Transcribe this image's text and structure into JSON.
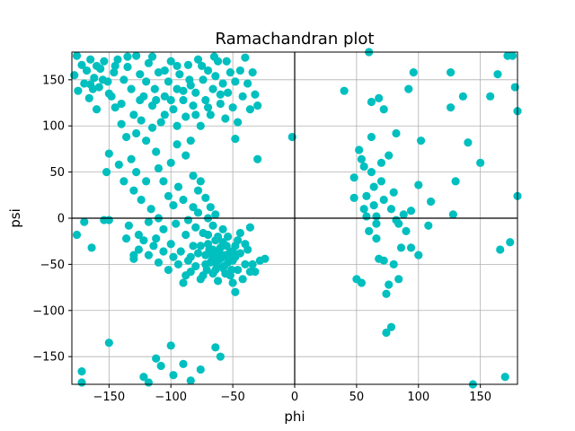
{
  "chart_data": {
    "type": "scatter",
    "title": "Ramachandran plot",
    "xlabel": "phi",
    "ylabel": "psi",
    "xlim": [
      -180,
      180
    ],
    "ylim": [
      -180,
      180
    ],
    "xticks": [
      -150,
      -100,
      -50,
      0,
      50,
      100,
      150
    ],
    "yticks": [
      -150,
      -100,
      -50,
      0,
      50,
      100,
      150
    ],
    "grid": true,
    "reference_lines": {
      "x": 0,
      "y": 0
    },
    "marker_color": "#00bfbf",
    "points": [
      [
        -176,
        176
      ],
      [
        -172,
        166
      ],
      [
        -168,
        160
      ],
      [
        -165,
        172
      ],
      [
        -162,
        152
      ],
      [
        -158,
        142
      ],
      [
        -178,
        155
      ],
      [
        -175,
        138
      ],
      [
        -170,
        146
      ],
      [
        -166,
        130
      ],
      [
        -163,
        140
      ],
      [
        -160,
        118
      ],
      [
        -157,
        162
      ],
      [
        -154,
        170
      ],
      [
        -151,
        148
      ],
      [
        -148,
        132
      ],
      [
        -146,
        158
      ],
      [
        -143,
        172
      ],
      [
        -140,
        124
      ],
      [
        -138,
        150
      ],
      [
        -135,
        164
      ],
      [
        -132,
        140
      ],
      [
        -130,
        112
      ],
      [
        -128,
        176
      ],
      [
        -125,
        156
      ],
      [
        -122,
        132
      ],
      [
        -120,
        148
      ],
      [
        -118,
        168
      ],
      [
        -115,
        122
      ],
      [
        -113,
        140
      ],
      [
        -110,
        158
      ],
      [
        -108,
        104
      ],
      [
        -105,
        132
      ],
      [
        -102,
        148
      ],
      [
        -100,
        170
      ],
      [
        -98,
        118
      ],
      [
        -95,
        140
      ],
      [
        -93,
        156
      ],
      [
        -90,
        128
      ],
      [
        -88,
        110
      ],
      [
        -86,
        166
      ],
      [
        -84,
        144
      ],
      [
        -82,
        122
      ],
      [
        -80,
        136
      ],
      [
        -78,
        172
      ],
      [
        -76,
        100
      ],
      [
        -74,
        150
      ],
      [
        -72,
        128
      ],
      [
        -70,
        160
      ],
      [
        -68,
        112
      ],
      [
        -66,
        140
      ],
      [
        -64,
        154
      ],
      [
        -62,
        170
      ],
      [
        -60,
        124
      ],
      [
        -58,
        146
      ],
      [
        -56,
        108
      ],
      [
        -54,
        136
      ],
      [
        -52,
        158
      ],
      [
        -50,
        120
      ],
      [
        -48,
        148
      ],
      [
        -46,
        104
      ],
      [
        -44,
        160
      ],
      [
        -42,
        132
      ],
      [
        -40,
        174
      ],
      [
        -38,
        146
      ],
      [
        -36,
        118
      ],
      [
        -34,
        158
      ],
      [
        -32,
        134
      ],
      [
        -30,
        122
      ],
      [
        -128,
        92
      ],
      [
        -124,
        106
      ],
      [
        -120,
        84
      ],
      [
        -140,
        102
      ],
      [
        -145,
        120
      ],
      [
        -150,
        135
      ],
      [
        -155,
        150
      ],
      [
        -160,
        165
      ],
      [
        -165,
        145
      ],
      [
        -145,
        165
      ],
      [
        -135,
        175
      ],
      [
        -115,
        175
      ],
      [
        -105,
        160
      ],
      [
        -95,
        165
      ],
      [
        -75,
        165
      ],
      [
        -65,
        175
      ],
      [
        -55,
        170
      ],
      [
        -85,
        150
      ],
      [
        -105,
        112
      ],
      [
        -95,
        100
      ],
      [
        -115,
        98
      ],
      [
        -125,
        128
      ],
      [
        -112,
        128
      ],
      [
        -100,
        128
      ],
      [
        -90,
        138
      ],
      [
        -80,
        112
      ],
      [
        -70,
        120
      ],
      [
        -60,
        134
      ],
      [
        -136,
        88
      ],
      [
        -132,
        64
      ],
      [
        -128,
        50
      ],
      [
        -130,
        30
      ],
      [
        -124,
        20
      ],
      [
        -120,
        40
      ],
      [
        -116,
        10
      ],
      [
        -110,
        0
      ],
      [
        -138,
        40
      ],
      [
        -142,
        58
      ],
      [
        -150,
        70
      ],
      [
        -152,
        50
      ],
      [
        -134,
        -8
      ],
      [
        -126,
        -18
      ],
      [
        -118,
        -4
      ],
      [
        -112,
        -22
      ],
      [
        -106,
        -12
      ],
      [
        -100,
        -28
      ],
      [
        -96,
        -6
      ],
      [
        -92,
        -36
      ],
      [
        -88,
        -18
      ],
      [
        -84,
        -42
      ],
      [
        -80,
        -10
      ],
      [
        -76,
        -30
      ],
      [
        -72,
        -50
      ],
      [
        -70,
        -18
      ],
      [
        -68,
        -38
      ],
      [
        -66,
        -60
      ],
      [
        -64,
        -24
      ],
      [
        -62,
        -46
      ],
      [
        -60,
        -32
      ],
      [
        -58,
        -54
      ],
      [
        -56,
        -40
      ],
      [
        -54,
        -20
      ],
      [
        -52,
        -62
      ],
      [
        -50,
        -46
      ],
      [
        -48,
        -30
      ],
      [
        -46,
        -56
      ],
      [
        -44,
        -38
      ],
      [
        -42,
        -66
      ],
      [
        -40,
        -50
      ],
      [
        -38,
        -34
      ],
      [
        -36,
        -58
      ],
      [
        -74,
        -62
      ],
      [
        -72,
        -40
      ],
      [
        -70,
        -28
      ],
      [
        -68,
        -48
      ],
      [
        -66,
        -34
      ],
      [
        -64,
        -56
      ],
      [
        -62,
        -68
      ],
      [
        -60,
        -44
      ],
      [
        -58,
        -26
      ],
      [
        -56,
        -60
      ],
      [
        -54,
        -48
      ],
      [
        -52,
        -36
      ],
      [
        -50,
        -70
      ],
      [
        -48,
        -42
      ],
      [
        -46,
        -24
      ],
      [
        -80,
        -52
      ],
      [
        -78,
        -38
      ],
      [
        -76,
        -66
      ],
      [
        -82,
        -30
      ],
      [
        -84,
        -58
      ],
      [
        -86,
        -46
      ],
      [
        -88,
        -62
      ],
      [
        -90,
        -70
      ],
      [
        -94,
        -50
      ],
      [
        -98,
        -42
      ],
      [
        -102,
        -56
      ],
      [
        -106,
        -36
      ],
      [
        -110,
        -48
      ],
      [
        -114,
        -30
      ],
      [
        -118,
        -40
      ],
      [
        -122,
        -24
      ],
      [
        -126,
        -34
      ],
      [
        -130,
        -44
      ],
      [
        -65,
        -40
      ],
      [
        -63,
        -50
      ],
      [
        -61,
        -36
      ],
      [
        -59,
        -42
      ],
      [
        -57,
        -52
      ],
      [
        -55,
        -30
      ],
      [
        -67,
        -46
      ],
      [
        -69,
        -34
      ],
      [
        -71,
        -56
      ],
      [
        -53,
        -44
      ],
      [
        -51,
        -56
      ],
      [
        -49,
        -38
      ],
      [
        -62,
        -20
      ],
      [
        -58,
        -12
      ],
      [
        -66,
        -8
      ],
      [
        -70,
        0
      ],
      [
        -74,
        -16
      ],
      [
        -78,
        6
      ],
      [
        -82,
        12
      ],
      [
        -86,
        -2
      ],
      [
        -90,
        20
      ],
      [
        -94,
        34
      ],
      [
        -98,
        14
      ],
      [
        -102,
        24
      ],
      [
        -106,
        40
      ],
      [
        -110,
        54
      ],
      [
        -100,
        60
      ],
      [
        -95,
        80
      ],
      [
        -88,
        68
      ],
      [
        -82,
        46
      ],
      [
        -78,
        30
      ],
      [
        -72,
        22
      ],
      [
        -68,
        12
      ],
      [
        -64,
        4
      ],
      [
        -76,
        40
      ],
      [
        -84,
        84
      ],
      [
        -112,
        72
      ],
      [
        -28,
        -46
      ],
      [
        -24,
        -44
      ],
      [
        -32,
        -58
      ],
      [
        -40,
        -28
      ],
      [
        -44,
        -16
      ],
      [
        -36,
        -10
      ],
      [
        -48,
        -80
      ],
      [
        -34,
        -50
      ],
      [
        -30,
        64
      ],
      [
        -48,
        86
      ],
      [
        -164,
        -32
      ],
      [
        -170,
        -4
      ],
      [
        -176,
        -18
      ],
      [
        -154,
        -2
      ],
      [
        -150,
        -2
      ],
      [
        -136,
        -22
      ],
      [
        -130,
        -40
      ],
      [
        -150,
        -135
      ],
      [
        -122,
        -172
      ],
      [
        -112,
        -152
      ],
      [
        -108,
        -160
      ],
      [
        -100,
        -138
      ],
      [
        -98,
        -170
      ],
      [
        -90,
        -158
      ],
      [
        -84,
        -176
      ],
      [
        -76,
        -164
      ],
      [
        -64,
        -140
      ],
      [
        -60,
        -150
      ],
      [
        -172,
        -166
      ],
      [
        -172,
        -178
      ],
      [
        -118,
        -178
      ],
      [
        -2,
        88
      ],
      [
        40,
        138
      ],
      [
        48,
        22
      ],
      [
        48,
        44
      ],
      [
        50,
        -66
      ],
      [
        52,
        74
      ],
      [
        54,
        64
      ],
      [
        56,
        56
      ],
      [
        56,
        10
      ],
      [
        58,
        24
      ],
      [
        60,
        180
      ],
      [
        60,
        -14
      ],
      [
        62,
        126
      ],
      [
        62,
        50
      ],
      [
        64,
        34
      ],
      [
        64,
        14
      ],
      [
        66,
        2
      ],
      [
        66,
        -6
      ],
      [
        68,
        130
      ],
      [
        68,
        -44
      ],
      [
        70,
        60
      ],
      [
        70,
        40
      ],
      [
        72,
        118
      ],
      [
        72,
        20
      ],
      [
        72,
        -46
      ],
      [
        74,
        -124
      ],
      [
        74,
        -82
      ],
      [
        76,
        -72
      ],
      [
        76,
        68
      ],
      [
        78,
        10
      ],
      [
        78,
        -118
      ],
      [
        80,
        28
      ],
      [
        80,
        -50
      ],
      [
        82,
        92
      ],
      [
        82,
        -2
      ],
      [
        84,
        -6
      ],
      [
        86,
        -32
      ],
      [
        88,
        4
      ],
      [
        90,
        -14
      ],
      [
        92,
        140
      ],
      [
        94,
        -32
      ],
      [
        94,
        8
      ],
      [
        96,
        158
      ],
      [
        100,
        36
      ],
      [
        102,
        84
      ],
      [
        108,
        -8
      ],
      [
        126,
        120
      ],
      [
        126,
        158
      ],
      [
        128,
        4
      ],
      [
        136,
        132
      ],
      [
        140,
        82
      ],
      [
        144,
        -180
      ],
      [
        158,
        132
      ],
      [
        164,
        156
      ],
      [
        166,
        -34
      ],
      [
        170,
        -172
      ],
      [
        172,
        176
      ],
      [
        174,
        -26
      ],
      [
        176,
        176
      ],
      [
        178,
        142
      ],
      [
        180,
        24
      ],
      [
        180,
        116
      ],
      [
        54,
        -70
      ],
      [
        58,
        2
      ],
      [
        62,
        88
      ],
      [
        66,
        -22
      ],
      [
        84,
        -66
      ],
      [
        100,
        -40
      ],
      [
        110,
        18
      ],
      [
        130,
        40
      ],
      [
        150,
        60
      ]
    ]
  }
}
